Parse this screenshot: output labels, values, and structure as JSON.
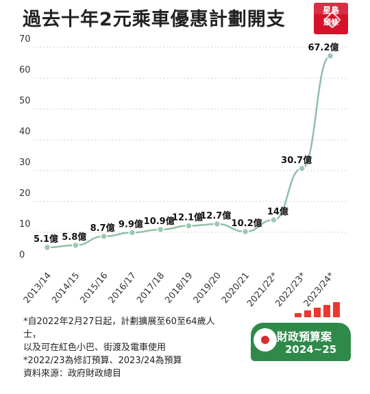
{
  "header": {
    "title": "過去十年2元乘車優惠計劃開支",
    "logo_line1": "星島",
    "logo_line2": "頭條"
  },
  "chart_data": {
    "type": "line",
    "title": "過去十年2元乘車優惠計劃開支",
    "categories": [
      "2013/14",
      "2014/15",
      "2015/16",
      "2016/17",
      "2017/18",
      "2018/19",
      "2019/20",
      "2020/21",
      "2021/22*",
      "2022/23*",
      "2023/24*"
    ],
    "values": [
      5.1,
      5.8,
      8.7,
      9.9,
      10.9,
      12.1,
      12.7,
      10.2,
      14,
      30.7,
      67.2
    ],
    "data_labels": [
      "5.1億",
      "5.8億",
      "8.7億",
      "9.9億",
      "10.9億",
      "12.1億",
      "12.7億",
      "10.2億",
      "14億",
      "30.7億",
      "67.2億"
    ],
    "yticks": [
      0,
      10,
      20,
      30,
      40,
      50,
      60,
      70
    ],
    "ylim": [
      0,
      70
    ],
    "xlabel": "",
    "ylabel": "",
    "grid": true,
    "line_color": "#8fbfa7"
  },
  "notes": [
    "*自2022年2月27日起，計劃擴展至60至64歲人",
    "士，",
    "以及可在紅色小巴、街渡及電車使用",
    "*2022/23為修訂預算、2023/24為預算",
    "資料來源：政府財政總目"
  ],
  "badge": {
    "line1": "財政預算案",
    "line2": "2024~25"
  }
}
